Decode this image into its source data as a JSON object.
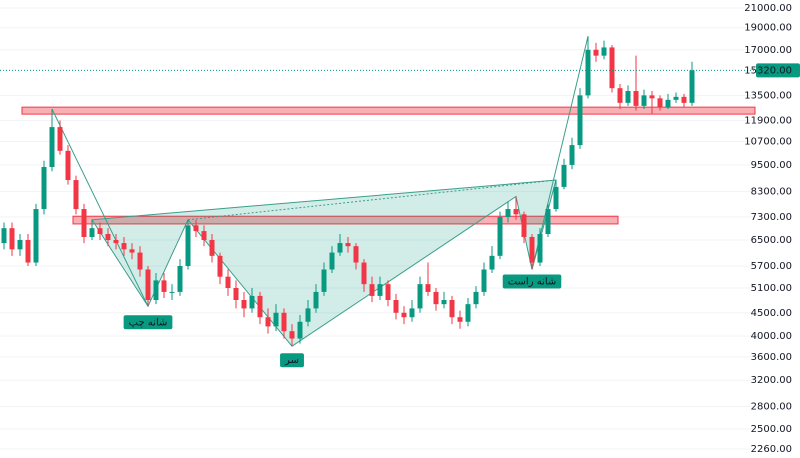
{
  "chart_data": {
    "type": "candlestick",
    "log_scale": true,
    "up_color": "#089981",
    "down_color": "#f23645",
    "ylim": [
      2160,
      21860
    ],
    "yticks": [
      {
        "value": 21000,
        "label": "21000.00"
      },
      {
        "value": 19000,
        "label": "19000.00"
      },
      {
        "value": 17000,
        "label": "17000.00"
      },
      {
        "value": 13500,
        "label": "13500.00"
      },
      {
        "value": 11900,
        "label": "11900.00"
      },
      {
        "value": 10700,
        "label": "10700.00"
      },
      {
        "value": 9500,
        "label": "9500.00"
      },
      {
        "value": 8300,
        "label": "8300.00"
      },
      {
        "value": 7300,
        "label": "7300.00"
      },
      {
        "value": 6500,
        "label": "6500.00"
      },
      {
        "value": 5700,
        "label": "5700.00"
      },
      {
        "value": 5100,
        "label": "5100.00"
      },
      {
        "value": 4500,
        "label": "4500.00"
      },
      {
        "value": 4000,
        "label": "4000.00"
      },
      {
        "value": 3600,
        "label": "3600.00"
      },
      {
        "value": 3200,
        "label": "3200.00"
      },
      {
        "value": 2800,
        "label": "2800.00"
      },
      {
        "value": 2500,
        "label": "2500.00"
      },
      {
        "value": 2260,
        "label": "2260.00"
      }
    ],
    "current_price": {
      "value": 15320,
      "label": "15320.00"
    },
    "zones": [
      {
        "from": 12280,
        "to": 12720
      },
      {
        "from": 7050,
        "to": 7330
      }
    ],
    "annotations": [
      "شانه چپ",
      "سر",
      "شانه راست"
    ],
    "open": [
      6400,
      6900,
      6200,
      6500,
      5800,
      7600,
      9400,
      11500,
      10200,
      8800,
      7600,
      6600,
      6900,
      6700,
      6500,
      6400,
      6200,
      6100,
      5600,
      4800,
      5300,
      5000,
      5000,
      5700,
      7000,
      6800,
      6500,
      6000,
      5400,
      5100,
      4800,
      4600,
      4900,
      4400,
      4200,
      4500,
      4100,
      3950,
      4300,
      4600,
      5000,
      5600,
      6100,
      6400,
      6300,
      5800,
      5200,
      4900,
      5200,
      4800,
      4500,
      4400,
      4600,
      5200,
      5000,
      4700,
      4800,
      4400,
      4300,
      4700,
      5000,
      5600,
      6000,
      7300,
      7600,
      7400,
      6600,
      5800,
      6700,
      7600,
      8500,
      9500,
      10500,
      13500,
      17000,
      16500,
      17200,
      14000,
      13000,
      13800,
      12800,
      13500,
      13300,
      12700,
      13200,
      13400,
      13000
    ],
    "high": [
      7100,
      7100,
      6700,
      6700,
      7800,
      9700,
      12600,
      11900,
      10500,
      9000,
      7800,
      7200,
      7100,
      6900,
      6700,
      6600,
      6400,
      6300,
      5700,
      5500,
      5500,
      5200,
      5900,
      7200,
      7200,
      7000,
      6700,
      6100,
      5600,
      5300,
      5000,
      5100,
      5000,
      4600,
      4700,
      4600,
      4250,
      4450,
      4800,
      5200,
      5800,
      6300,
      6700,
      6600,
      6400,
      5900,
      5400,
      5400,
      5300,
      4950,
      4650,
      4800,
      5400,
      5800,
      5100,
      5000,
      4900,
      4550,
      4850,
      5150,
      5800,
      6300,
      7500,
      7900,
      8100,
      7500,
      6700,
      6900,
      7800,
      8800,
      9800,
      10900,
      14000,
      18200,
      17600,
      17800,
      17400,
      14300,
      14200,
      16500,
      13900,
      13800,
      13500,
      13600,
      13700,
      13600,
      16000
    ],
    "low": [
      6200,
      6000,
      6000,
      5700,
      5700,
      7400,
      9200,
      10000,
      8600,
      7400,
      6400,
      6500,
      6500,
      6300,
      6200,
      6000,
      5900,
      5400,
      4650,
      4700,
      4850,
      4800,
      4900,
      5600,
      6600,
      6300,
      5800,
      5200,
      4900,
      4600,
      4400,
      4500,
      4250,
      4050,
      4100,
      3950,
      3800,
      3850,
      4200,
      4500,
      4900,
      5500,
      6000,
      6100,
      5600,
      5000,
      4750,
      4800,
      4650,
      4350,
      4250,
      4300,
      4500,
      4900,
      4550,
      4600,
      4250,
      4150,
      4200,
      4600,
      4900,
      5500,
      5900,
      7100,
      7200,
      6400,
      5600,
      5700,
      6600,
      7500,
      8400,
      9300,
      10300,
      13300,
      16000,
      16200,
      13700,
      12600,
      12800,
      12500,
      12600,
      12300,
      12500,
      12600,
      13000,
      12700,
      12800
    ],
    "close": [
      6900,
      6200,
      6500,
      5800,
      7600,
      9400,
      11500,
      10200,
      8800,
      7600,
      6600,
      6900,
      6700,
      6500,
      6400,
      6200,
      6100,
      5600,
      4800,
      5300,
      5000,
      5000,
      5700,
      7000,
      6800,
      6500,
      6000,
      5400,
      5100,
      4800,
      4600,
      4900,
      4400,
      4200,
      4500,
      4100,
      3950,
      4300,
      4600,
      5000,
      5600,
      6100,
      6400,
      6300,
      5800,
      5200,
      4900,
      5200,
      4800,
      4500,
      4400,
      4600,
      5200,
      5000,
      4700,
      4800,
      4400,
      4300,
      4700,
      5000,
      5600,
      6000,
      7300,
      7600,
      7400,
      6600,
      5800,
      6700,
      7600,
      8500,
      9500,
      10500,
      13500,
      17000,
      16500,
      17200,
      14000,
      13000,
      13800,
      12800,
      13500,
      13300,
      12700,
      13200,
      13400,
      13000,
      15320
    ]
  }
}
